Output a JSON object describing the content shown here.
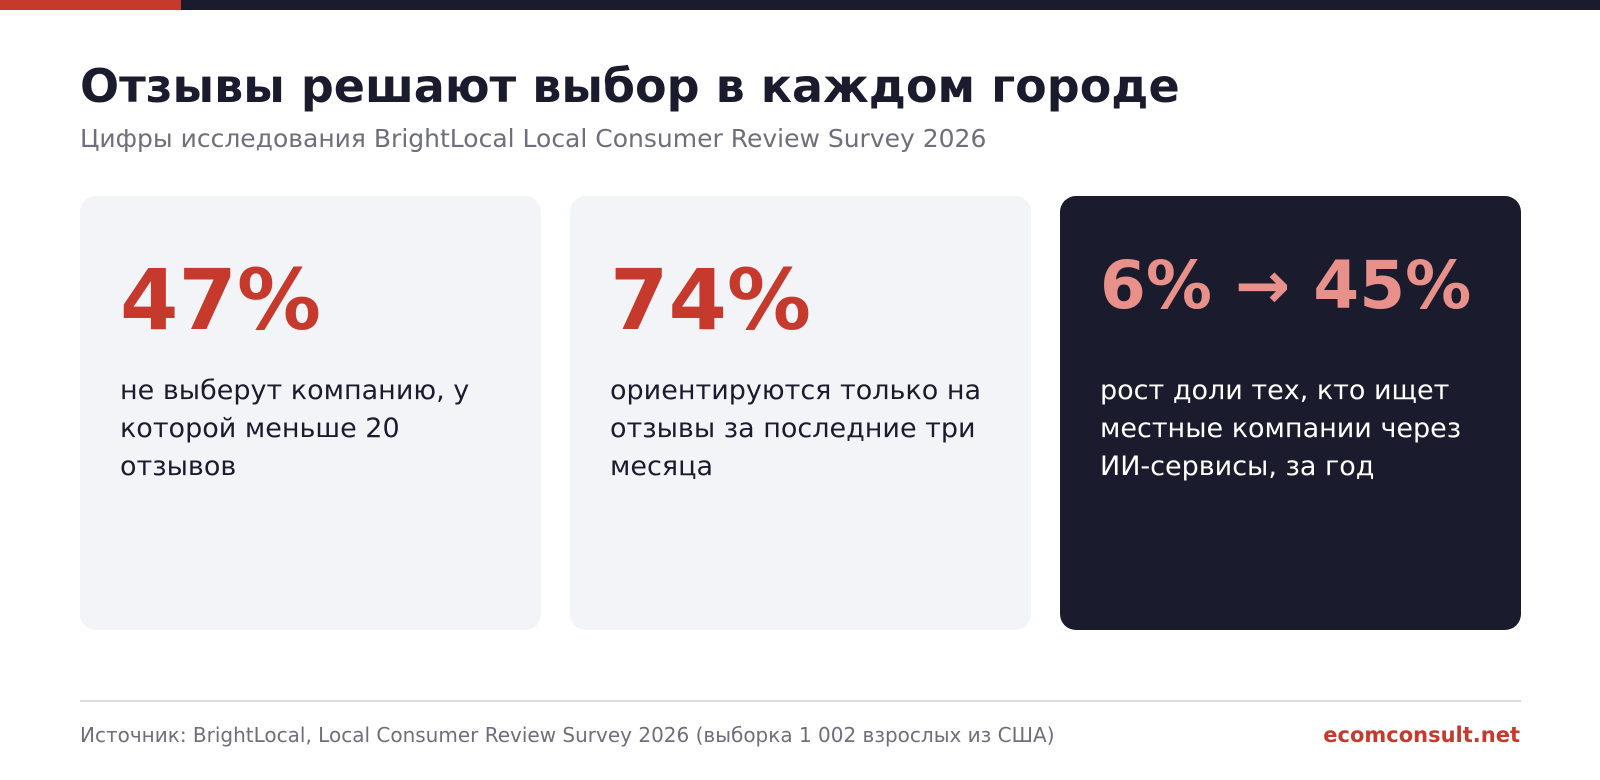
{
  "colors": {
    "accent": "#c63a2d",
    "accent_light": "#e8908a",
    "dark": "#1b1b2e",
    "card_light": "#f3f4f8",
    "muted_text": "#6e6e7c"
  },
  "header": {
    "title": "Отзывы решают выбор в каждом городе",
    "subtitle": "Цифры исследования BrightLocal Local Consumer Review Survey 2026"
  },
  "cards": [
    {
      "stat": "47%",
      "text": "не выберут компанию, у которой меньше 20 отзывов"
    },
    {
      "stat": "74%",
      "text": "ориентируются только на отзывы за последние три месяца"
    },
    {
      "stat": "6% → 45%",
      "text": "рост доли тех, кто ищет местные компании через ИИ-сервисы, за год"
    }
  ],
  "footer": {
    "source": "Источник: BrightLocal, Local Consumer Review Survey 2026 (выборка 1 002 взрослых из США)",
    "brand": "ecomconsult.net"
  }
}
